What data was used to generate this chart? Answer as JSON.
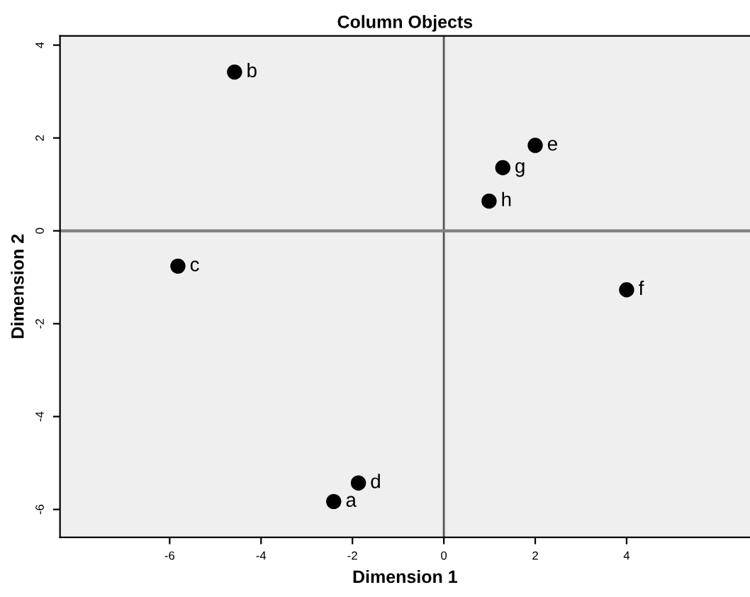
{
  "chart_data": {
    "type": "scatter",
    "title": "Column Objects",
    "xlabel": "Dimension 1",
    "ylabel": "Dimension 2",
    "x": [
      -2.41,
      -4.58,
      -5.82,
      -1.87,
      2.0,
      4.0,
      1.29,
      0.99
    ],
    "series": [
      {
        "color": "#000000",
        "values": [
          -5.83,
          3.42,
          -0.76,
          -5.43,
          1.84,
          -1.27,
          1.36,
          0.64
        ]
      }
    ],
    "annotations": [
      {
        "text": "a",
        "x": -2.41,
        "y": -5.83
      },
      {
        "text": "b",
        "x": -4.58,
        "y": 3.42
      },
      {
        "text": "c",
        "x": -5.82,
        "y": -0.76
      },
      {
        "text": "d",
        "x": -1.87,
        "y": -5.43
      },
      {
        "text": "e",
        "x": 2.0,
        "y": 1.84
      },
      {
        "text": "f",
        "x": 4.0,
        "y": -1.27
      },
      {
        "text": "g",
        "x": 1.29,
        "y": 1.36
      },
      {
        "text": "h",
        "x": 0.99,
        "y": 0.64
      }
    ],
    "ref_lines": [
      {
        "axis": "x",
        "value": 0,
        "color": "#555555"
      },
      {
        "axis": "y",
        "value": 0,
        "color": "#808080"
      }
    ],
    "xlim": [
      -8.4,
      6.7
    ],
    "ylim": [
      -6.6,
      4.2
    ],
    "xticks": [
      -6,
      -4,
      -2,
      0,
      2,
      4
    ],
    "yticks": [
      -6,
      -4,
      -2,
      0,
      2,
      4
    ],
    "grid": false,
    "legend": false,
    "marker": "circle"
  }
}
